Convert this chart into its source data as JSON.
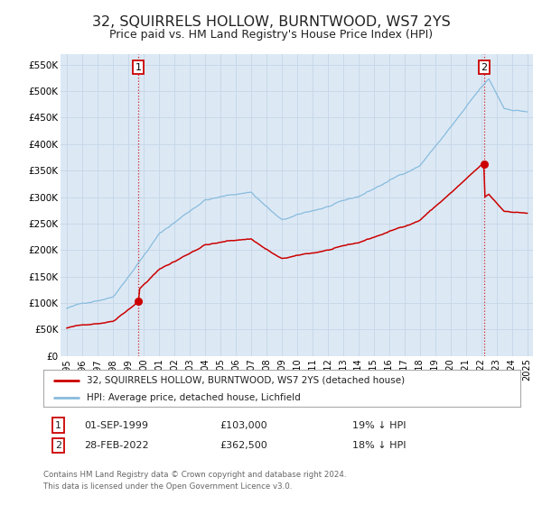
{
  "title": "32, SQUIRRELS HOLLOW, BURNTWOOD, WS7 2YS",
  "subtitle": "Price paid vs. HM Land Registry's House Price Index (HPI)",
  "title_fontsize": 11.5,
  "subtitle_fontsize": 9,
  "background_color": "#ffffff",
  "plot_bg_color": "#dce9f5",
  "grid_color": "#c8d8e8",
  "ylabel_ticks": [
    "£0",
    "£50K",
    "£100K",
    "£150K",
    "£200K",
    "£250K",
    "£300K",
    "£350K",
    "£400K",
    "£450K",
    "£500K",
    "£550K"
  ],
  "ylabel_values": [
    0,
    50000,
    100000,
    150000,
    200000,
    250000,
    300000,
    350000,
    400000,
    450000,
    500000,
    550000
  ],
  "ylim": [
    0,
    570000
  ],
  "xlim_start": 1994.6,
  "xlim_end": 2025.4,
  "xtick_years": [
    1995,
    1996,
    1997,
    1998,
    1999,
    2000,
    2001,
    2002,
    2003,
    2004,
    2005,
    2006,
    2007,
    2008,
    2009,
    2010,
    2011,
    2012,
    2013,
    2014,
    2015,
    2016,
    2017,
    2018,
    2019,
    2020,
    2021,
    2022,
    2023,
    2024,
    2025
  ],
  "sale1_x": 1999.67,
  "sale1_y": 103000,
  "sale2_x": 2022.17,
  "sale2_y": 362500,
  "sale1_date": "01-SEP-1999",
  "sale1_price": "£103,000",
  "sale1_hpi": "19% ↓ HPI",
  "sale2_date": "28-FEB-2022",
  "sale2_price": "£362,500",
  "sale2_hpi": "18% ↓ HPI",
  "vline_color": "#cc0000",
  "property_line_color": "#cc0000",
  "hpi_line_color": "#88bbdd",
  "dot_color": "#cc0000",
  "legend_label1": "32, SQUIRRELS HOLLOW, BURNTWOOD, WS7 2YS (detached house)",
  "legend_label2": "HPI: Average price, detached house, Lichfield",
  "footer1": "Contains HM Land Registry data © Crown copyright and database right 2024.",
  "footer2": "This data is licensed under the Open Government Licence v3.0."
}
